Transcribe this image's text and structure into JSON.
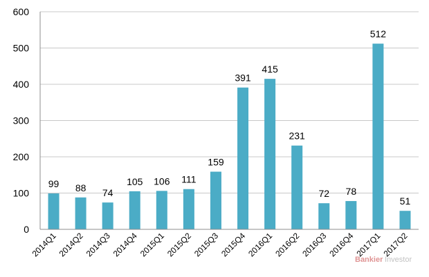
{
  "chart_data": {
    "type": "bar",
    "categories": [
      "2014Q1",
      "2014Q2",
      "2014Q3",
      "2014Q4",
      "2015Q1",
      "2015Q2",
      "2015Q3",
      "2015Q4",
      "2016Q1",
      "2016Q2",
      "2016Q3",
      "2016Q4",
      "2017Q1",
      "2017Q2"
    ],
    "values": [
      99,
      88,
      74,
      105,
      106,
      111,
      159,
      391,
      415,
      231,
      72,
      78,
      512,
      51
    ],
    "title": "",
    "xlabel": "",
    "ylabel": "",
    "ylim": [
      0,
      600
    ],
    "yticks": [
      0,
      100,
      200,
      300,
      400,
      500,
      600
    ],
    "grid": true,
    "legend": "none",
    "bar_color": "#4bacc6",
    "data_labels": true
  },
  "watermark": {
    "part1": "Bankier",
    "part2": "Investor"
  }
}
